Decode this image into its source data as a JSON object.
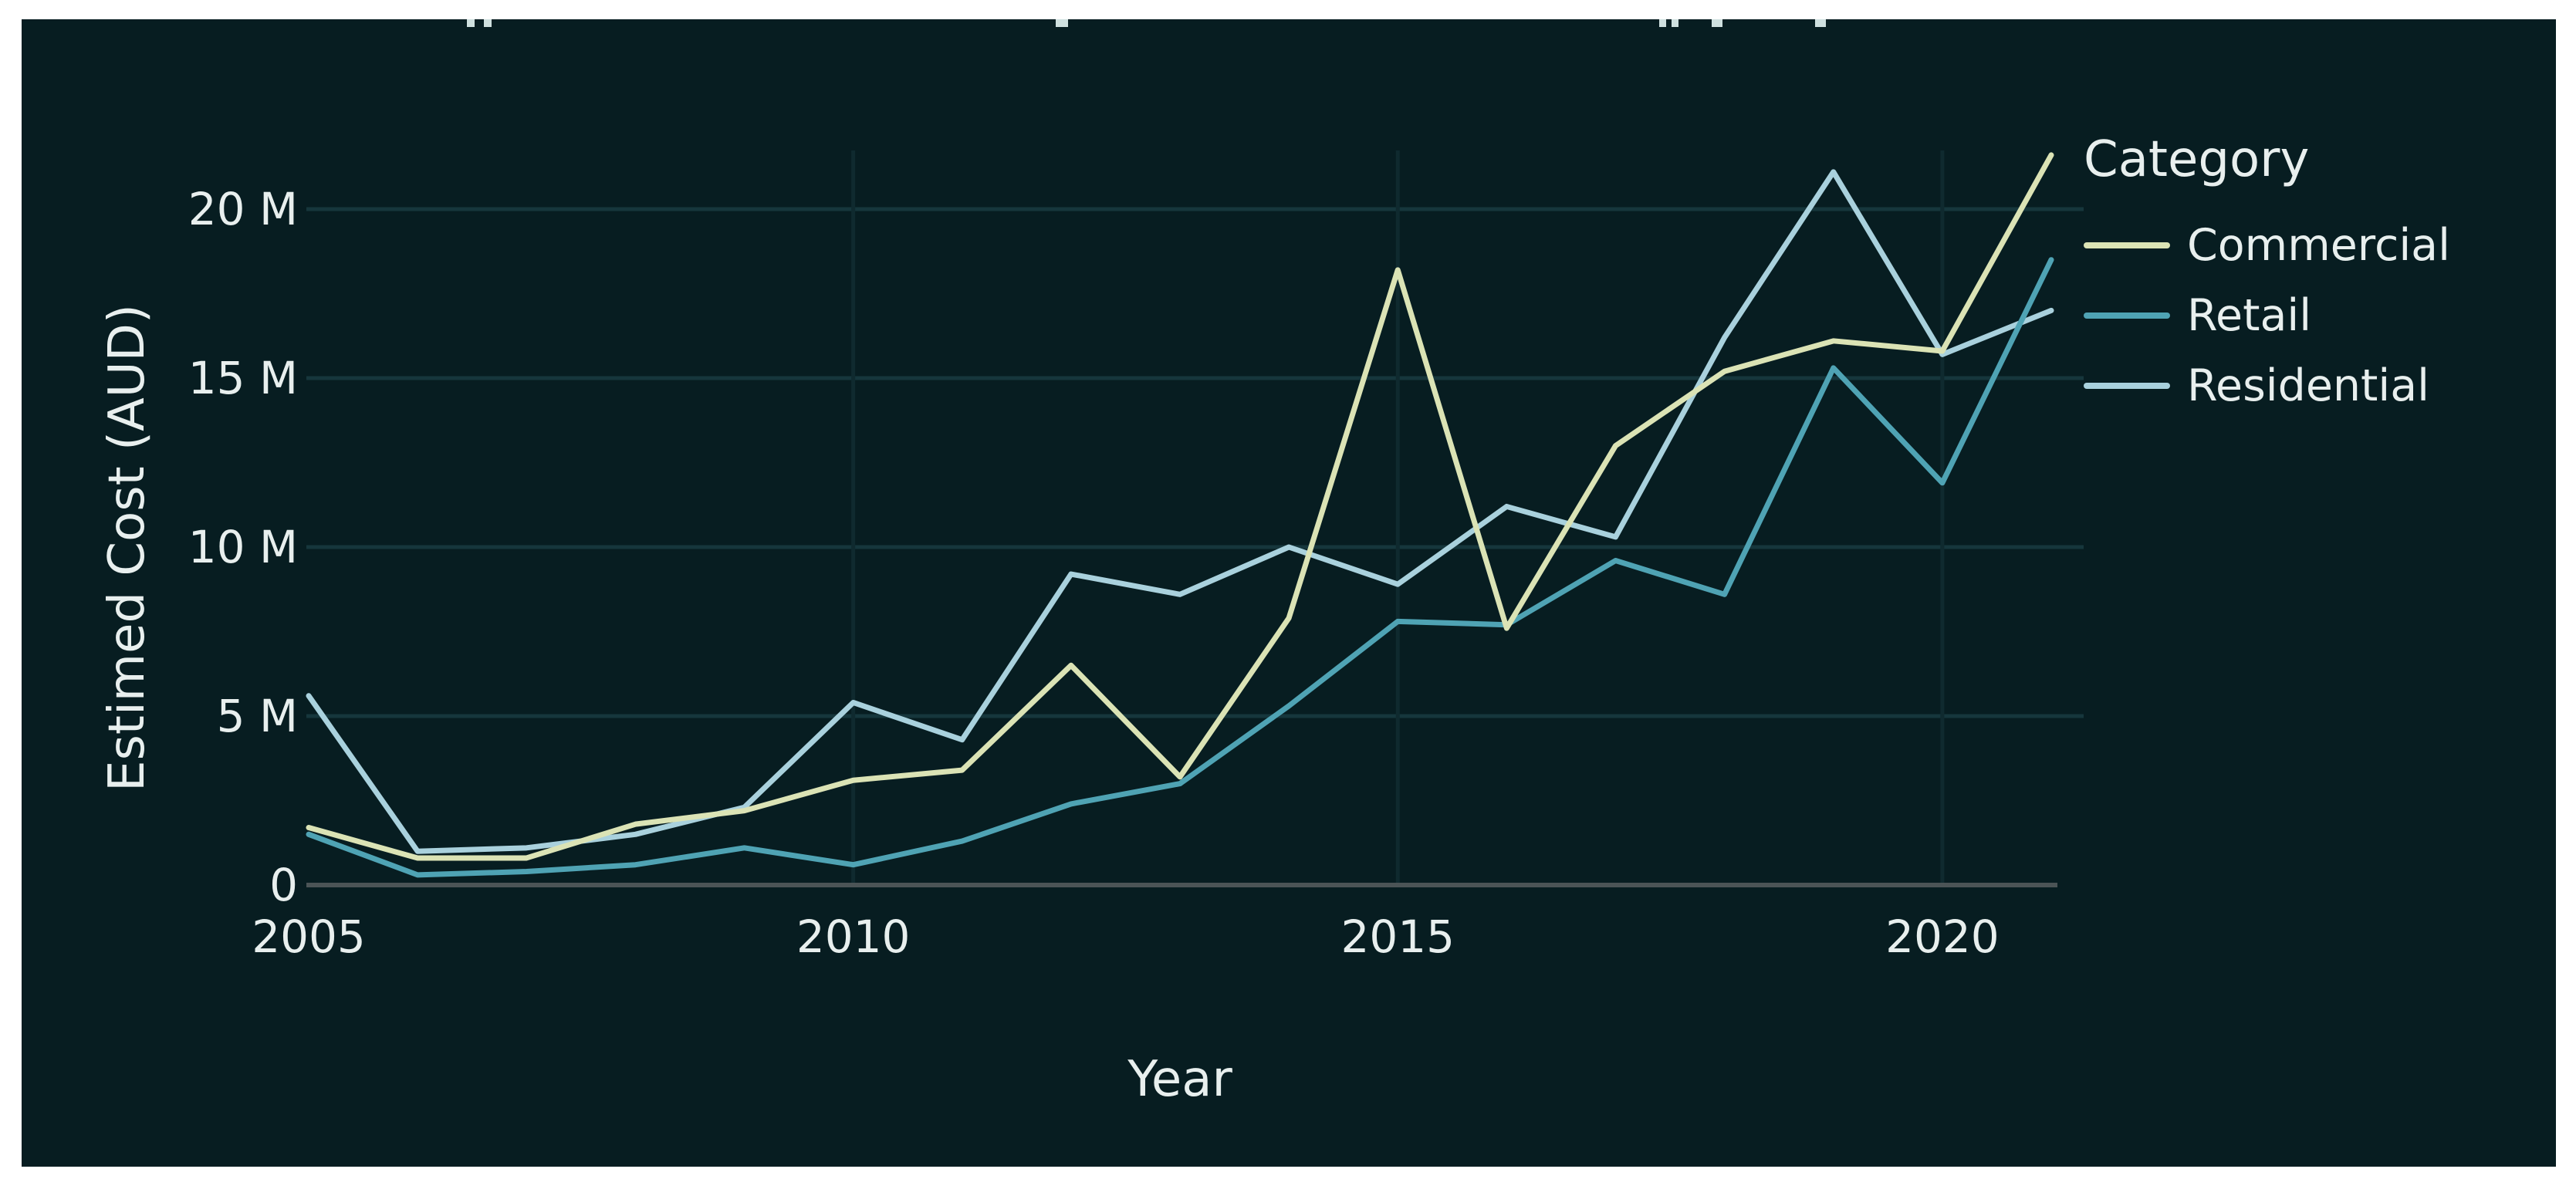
{
  "colors": {
    "page_bg": "#ffffff",
    "panel_bg": "#071d21",
    "grid": "#16363c",
    "grid_vertical": "#0f2a2f",
    "zero_axis": "#4b5456",
    "text": "#e8efee"
  },
  "y_axis": {
    "title": "Estimed Cost (AUD)",
    "tick_labels": [
      "0",
      "5 M",
      "10 M",
      "15 M",
      "20 M"
    ],
    "tick_values": [
      0,
      5,
      10,
      15,
      20
    ]
  },
  "x_axis": {
    "title": "Year",
    "tick_labels": [
      "2005",
      "2010",
      "2015",
      "2020"
    ],
    "tick_values": [
      2005,
      2010,
      2015,
      2020
    ]
  },
  "legend": {
    "title": "Category"
  },
  "chart_data": {
    "type": "line",
    "title": "",
    "xlabel": "Year",
    "ylabel": "Estimed Cost (AUD)",
    "xlim": [
      2005,
      2021
    ],
    "ylim": [
      0,
      21.8
    ],
    "grid": "on",
    "legend_position": "right",
    "legend_title": "Category",
    "x": [
      2005,
      2006,
      2007,
      2008,
      2009,
      2010,
      2011,
      2012,
      2013,
      2014,
      2015,
      2016,
      2017,
      2018,
      2019,
      2020,
      2021
    ],
    "series": [
      {
        "name": "Commercial",
        "color": "#dbe3b5",
        "values": [
          1.7,
          0.8,
          0.8,
          1.8,
          2.2,
          3.1,
          3.4,
          6.5,
          3.2,
          7.9,
          18.2,
          7.6,
          13.0,
          15.2,
          16.1,
          15.8,
          21.6
        ]
      },
      {
        "name": "Retail",
        "color": "#4fa3b4",
        "values": [
          1.5,
          0.3,
          0.4,
          0.6,
          1.1,
          0.6,
          1.3,
          2.4,
          3.0,
          5.3,
          7.8,
          7.7,
          9.6,
          8.6,
          15.3,
          11.9,
          18.5
        ]
      },
      {
        "name": "Residential",
        "color": "#a9d1dd",
        "values": [
          5.6,
          1.0,
          1.1,
          1.5,
          2.3,
          5.4,
          4.3,
          9.2,
          8.6,
          10.0,
          8.9,
          11.2,
          10.3,
          16.2,
          21.1,
          15.7,
          17.0
        ]
      }
    ]
  }
}
